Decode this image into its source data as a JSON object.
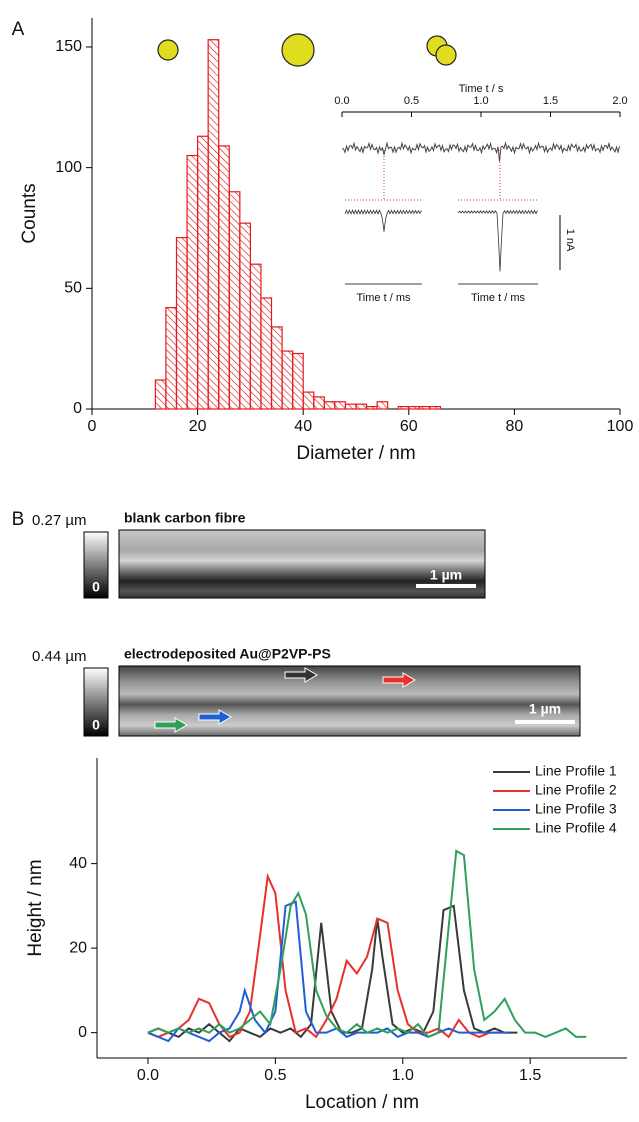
{
  "chart_data": [
    {
      "type": "histogram",
      "panel": "A",
      "xlabel": "Diameter / nm",
      "ylabel": "Counts",
      "bins": [
        12,
        14,
        16,
        18,
        20,
        22,
        24,
        26,
        28,
        30,
        32,
        34,
        36,
        38,
        40,
        42,
        44,
        46,
        48,
        50,
        52,
        54,
        56,
        58,
        60,
        62,
        64,
        66
      ],
      "values": [
        12,
        42,
        71,
        105,
        113,
        153,
        109,
        90,
        77,
        60,
        46,
        34,
        24,
        23,
        7,
        5,
        3,
        3,
        2,
        2,
        1,
        3,
        0,
        1,
        1,
        1,
        1
      ],
      "color": "#e31a1c",
      "xlim": [
        0,
        100
      ],
      "ylim": [
        0,
        162
      ],
      "xticks": [
        0,
        20,
        40,
        60,
        80,
        100
      ],
      "yticks": [
        0,
        50,
        100,
        150
      ],
      "inset": {
        "title": "Time t / s",
        "xlim": [
          0,
          2
        ],
        "xticks": [
          {
            "value": 0,
            "label": "0.0"
          },
          {
            "value": 0.5,
            "label": "0.5"
          },
          {
            "value": 1,
            "label": "1.0"
          },
          {
            "value": 1.5,
            "label": "1.5"
          },
          {
            "value": 2,
            "label": "2.0"
          }
        ],
        "sub_xlabels": [
          "Time t / ms",
          "Time t / ms"
        ],
        "scale_label": "1 nA"
      }
    },
    {
      "type": "line",
      "panel": "B",
      "xlabel": "Location / nm",
      "ylabel": "Height / nm",
      "xlim": [
        -0.2,
        1.88
      ],
      "ylim": [
        -6,
        65
      ],
      "xticks": [
        {
          "value": 0,
          "label": "0.0"
        },
        {
          "value": 0.5,
          "label": "0.5"
        },
        {
          "value": 1,
          "label": "1.0"
        },
        {
          "value": 1.5,
          "label": "1.5"
        }
      ],
      "yticks": [
        0,
        20,
        40
      ],
      "legend": "upper right",
      "series": [
        {
          "name": "Line Profile 1",
          "color": "#3a3a3a",
          "x": [
            0,
            0.04,
            0.08,
            0.12,
            0.16,
            0.2,
            0.24,
            0.28,
            0.32,
            0.36,
            0.4,
            0.44,
            0.48,
            0.52,
            0.56,
            0.6,
            0.64,
            0.68,
            0.72,
            0.76,
            0.8,
            0.84,
            0.88,
            0.9,
            0.92,
            0.96,
            1.0,
            1.04,
            1.08,
            1.12,
            1.16,
            1.2,
            1.24,
            1.28,
            1.32,
            1.36,
            1.4,
            1.45
          ],
          "values": [
            0,
            1,
            0,
            -1,
            1,
            0,
            2,
            0,
            -2,
            1,
            0,
            -1,
            1,
            0,
            1,
            -1,
            2,
            26,
            5,
            0,
            0,
            1,
            15,
            27,
            18,
            2,
            0,
            1,
            0,
            5,
            29,
            30,
            10,
            1,
            0,
            1,
            0,
            0
          ]
        },
        {
          "name": "Line Profile 2",
          "color": "#e8302c",
          "x": [
            0,
            0.04,
            0.08,
            0.12,
            0.16,
            0.2,
            0.24,
            0.28,
            0.32,
            0.36,
            0.4,
            0.44,
            0.47,
            0.5,
            0.54,
            0.58,
            0.62,
            0.66,
            0.7,
            0.74,
            0.78,
            0.82,
            0.86,
            0.9,
            0.94,
            0.98,
            1.02,
            1.06,
            1.1,
            1.14,
            1.18,
            1.22,
            1.26,
            1.3,
            1.34,
            1.38,
            1.42
          ],
          "values": [
            0,
            -1,
            0,
            1,
            3,
            8,
            7,
            2,
            -1,
            0,
            5,
            23,
            37,
            33,
            10,
            0,
            1,
            -1,
            3,
            8,
            17,
            14,
            18,
            27,
            26,
            10,
            2,
            0,
            0,
            1,
            -1,
            3,
            0,
            -1,
            0,
            0,
            0
          ]
        },
        {
          "name": "Line Profile 3",
          "color": "#1f5fd6",
          "x": [
            0,
            0.04,
            0.08,
            0.12,
            0.16,
            0.2,
            0.24,
            0.28,
            0.32,
            0.36,
            0.38,
            0.42,
            0.46,
            0.5,
            0.54,
            0.58,
            0.62,
            0.66,
            0.7,
            0.74,
            0.78,
            0.82,
            0.86,
            0.9,
            0.94,
            0.98,
            1.02,
            1.06,
            1.1,
            1.14,
            1.18,
            1.22,
            1.26,
            1.3,
            1.34,
            1.38,
            1.42
          ],
          "values": [
            0,
            -1,
            -2,
            1,
            0,
            -1,
            -2,
            0,
            1,
            5,
            10,
            3,
            0,
            5,
            30,
            31,
            5,
            0,
            0,
            1,
            -1,
            0,
            0,
            0,
            1,
            -1,
            0,
            0,
            -1,
            0,
            1,
            0,
            0,
            0,
            0,
            0,
            0
          ]
        },
        {
          "name": "Line Profile 4",
          "color": "#2ea05a",
          "x": [
            0,
            0.04,
            0.08,
            0.12,
            0.16,
            0.2,
            0.24,
            0.28,
            0.32,
            0.36,
            0.4,
            0.44,
            0.48,
            0.52,
            0.56,
            0.59,
            0.62,
            0.66,
            0.7,
            0.74,
            0.78,
            0.82,
            0.86,
            0.9,
            0.94,
            0.98,
            1.02,
            1.06,
            1.1,
            1.14,
            1.18,
            1.21,
            1.24,
            1.28,
            1.32,
            1.36,
            1.4,
            1.44,
            1.48,
            1.52,
            1.56,
            1.6,
            1.64,
            1.68,
            1.72
          ],
          "values": [
            0,
            1,
            0,
            1,
            0,
            1,
            0,
            2,
            0,
            1,
            3,
            5,
            2,
            15,
            30,
            33,
            28,
            10,
            4,
            1,
            0,
            2,
            0,
            1,
            0,
            1,
            0,
            2,
            -1,
            0,
            25,
            43,
            42,
            15,
            3,
            5,
            8,
            3,
            0,
            0,
            -1,
            0,
            1,
            -1,
            -1
          ]
        }
      ]
    }
  ],
  "images": [
    {
      "title": "blank carbon fibre",
      "scale_max": "0.27 µm",
      "scale_min": "0",
      "scale_bar": "1 µm"
    },
    {
      "title": "electrodeposited Au@P2VP-PS",
      "scale_max": "0.44 µm",
      "scale_min": "0",
      "scale_bar": "1 µm"
    }
  ]
}
